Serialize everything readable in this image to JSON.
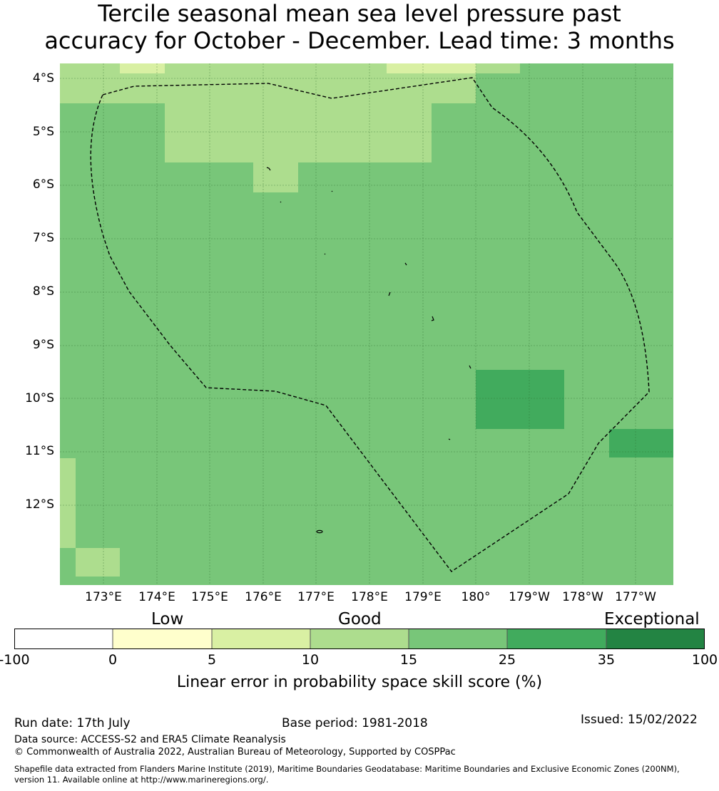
{
  "title": {
    "line1": "Tercile seasonal mean sea level pressure past",
    "line2": "accuracy for October - December. Lead time: 3 months"
  },
  "map": {
    "lat_labels": [
      "4°S",
      "5°S",
      "6°S",
      "7°S",
      "8°S",
      "9°S",
      "10°S",
      "11°S",
      "12°S"
    ],
    "lon_labels": [
      "173°E",
      "174°E",
      "175°E",
      "176°E",
      "177°E",
      "178°E",
      "179°E",
      "180°",
      "179°W",
      "178°W",
      "177°W"
    ],
    "boundary_style": "dashed",
    "gridlines": true
  },
  "legend": {
    "categories": [
      "Low",
      "Good",
      "Exceptional"
    ],
    "ticks": [
      "-100",
      "0",
      "5",
      "10",
      "15",
      "25",
      "35",
      "100"
    ],
    "bins": [
      {
        "range": "-100 to 0",
        "color": "#ffffff"
      },
      {
        "range": "0 to 5",
        "color": "#ffffcc"
      },
      {
        "range": "5 to 10",
        "color": "#d9f0a3"
      },
      {
        "range": "10 to 15",
        "color": "#addd8e"
      },
      {
        "range": "15 to 25",
        "color": "#78c679"
      },
      {
        "range": "25 to 35",
        "color": "#41ab5d"
      },
      {
        "range": "35 to 100",
        "color": "#238443"
      }
    ],
    "axis_title": "Linear error in probability space skill score (%)"
  },
  "footer": {
    "run_date": "Run date: 17th July",
    "base_period": "Base period: 1981-2018",
    "issued": "Issued: 15/02/2022",
    "data_source": "Data source: ACCESS-S2 and ERA5 Climate Reanalysis",
    "copyright": "© Commonwealth of Australia 2022, Australian Bureau of Meteorology, Supported by COSPPac",
    "shapefile_line1": "Shapefile data extracted from Flanders Marine Institute (2019), Maritime Boundaries Geodatabase: Maritime Boundaries and Exclusive Economic Zones (200NM),",
    "shapefile_line2": "version 11. Available online at http://www.marineregions.org/."
  }
}
